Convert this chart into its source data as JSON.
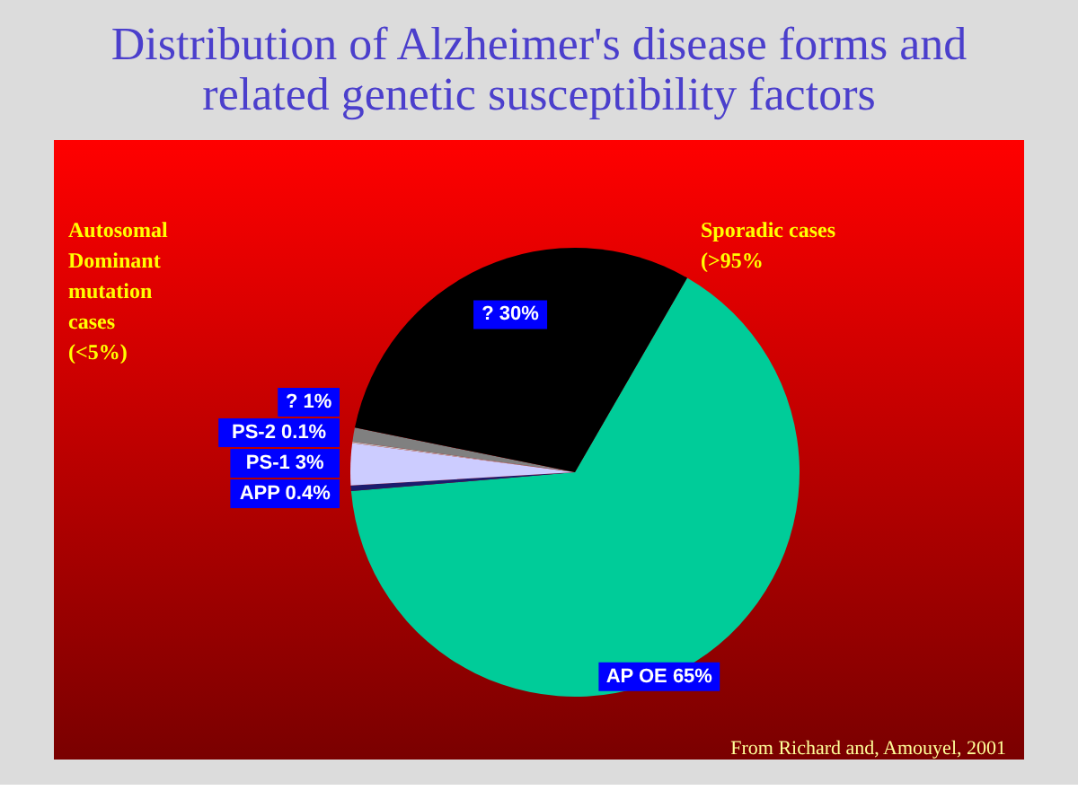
{
  "chart_data": {
    "type": "pie",
    "title": "Distribution of Alzheimer's disease forms and\nrelated genetic susceptibility factors",
    "categories": [
      "AP OE 65%",
      "APP 0.4%",
      "PS-1  3%",
      "PS-2 0.1%",
      "? 1%",
      "? 30%"
    ],
    "values": [
      65,
      0.4,
      3,
      0.1,
      1,
      30
    ],
    "colors": [
      "#00cc99",
      "#1c1c6e",
      "#ccccff",
      "#c0c0c0",
      "#808080",
      "#000000"
    ],
    "annotations": [
      "Autosomal\nDominant\nmutation\ncases\n(<5%)",
      "Sporadic cases\n(>95%",
      "From Richard and, Amouyel, 2001"
    ],
    "legend": false
  }
}
